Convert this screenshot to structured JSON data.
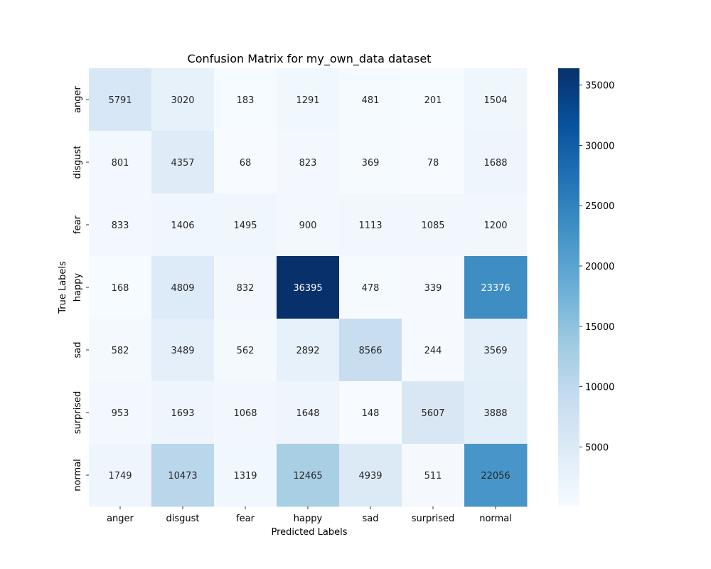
{
  "chart_data": {
    "type": "heatmap",
    "title": "Confusion Matrix for my_own_data dataset",
    "xlabel": "Predicted Labels",
    "ylabel": "True Labels",
    "x_categories": [
      "anger",
      "disgust",
      "fear",
      "happy",
      "sad",
      "surprised",
      "normal"
    ],
    "y_categories": [
      "anger",
      "disgust",
      "fear",
      "happy",
      "sad",
      "surprised",
      "normal"
    ],
    "values": [
      [
        5791,
        3020,
        183,
        1291,
        481,
        201,
        1504
      ],
      [
        801,
        4357,
        68,
        823,
        369,
        78,
        1688
      ],
      [
        833,
        1406,
        1495,
        900,
        1113,
        1085,
        1200
      ],
      [
        168,
        4809,
        832,
        36395,
        478,
        339,
        23376
      ],
      [
        582,
        3489,
        562,
        2892,
        8566,
        244,
        3569
      ],
      [
        953,
        1693,
        1068,
        1648,
        148,
        5607,
        3888
      ],
      [
        1749,
        10473,
        1319,
        12465,
        4939,
        511,
        22056
      ]
    ],
    "colormap": "Blues",
    "colormap_stops": [
      "#f7fbff",
      "#deebf7",
      "#c6dbef",
      "#9ecae1",
      "#6baed6",
      "#4292c6",
      "#2171b5",
      "#08519c",
      "#08306b"
    ],
    "value_range": [
      68,
      36395
    ],
    "colorbar_ticks": [
      5000,
      10000,
      15000,
      20000,
      25000,
      30000,
      35000
    ],
    "colorbar_tick_labels": [
      "5000",
      "10000",
      "15000",
      "20000",
      "25000",
      "30000",
      "35000"
    ]
  }
}
